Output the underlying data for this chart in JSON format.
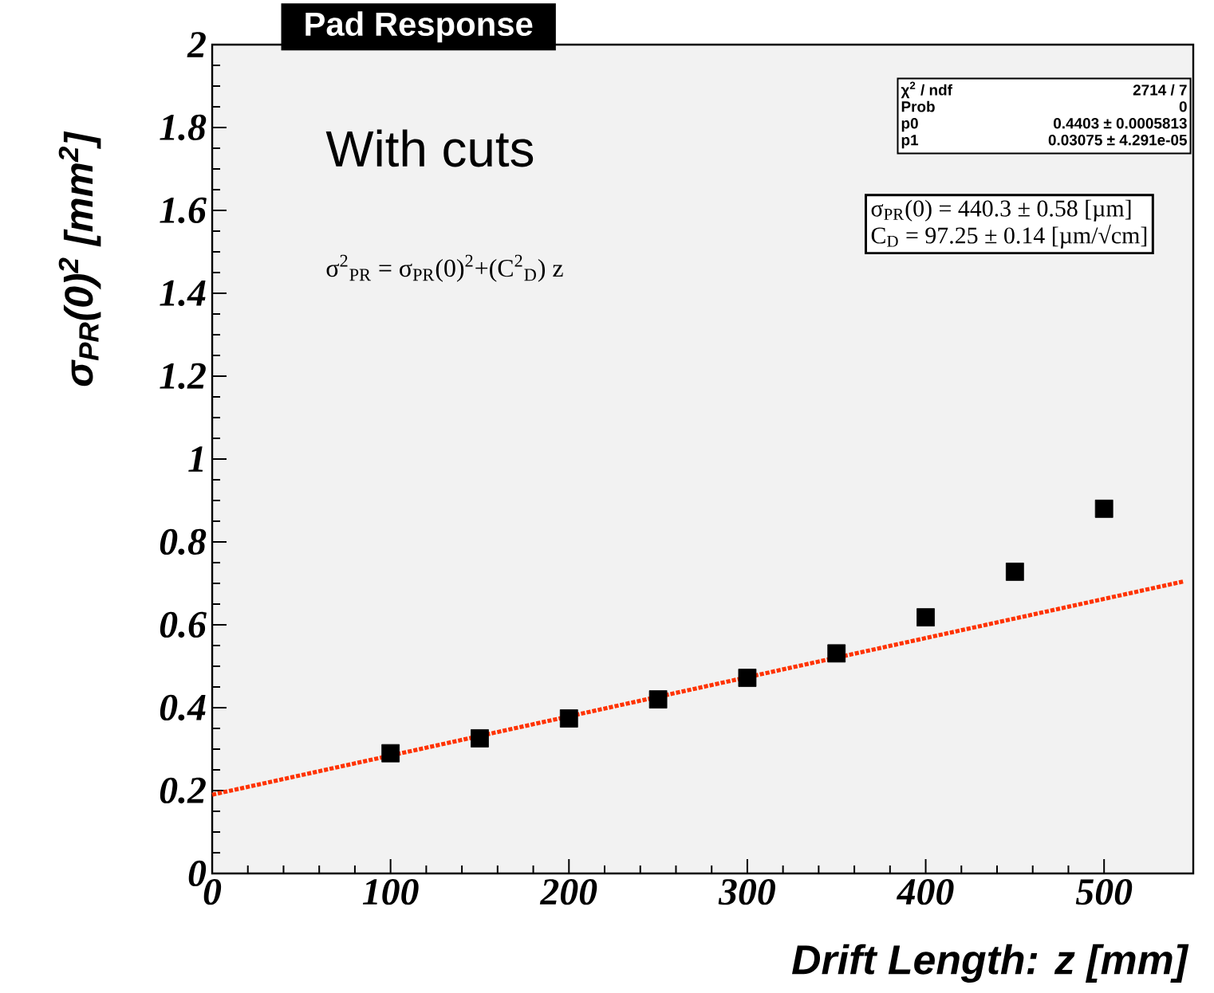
{
  "chart_data": {
    "type": "scatter",
    "title": "Pad Response",
    "xlabel": "Drift Length: z [mm]",
    "ylabel": "σ$_{PR}$(0)$^{2}$ [mm$^{2}$]",
    "xlim": [
      0,
      550
    ],
    "ylim": [
      0,
      2
    ],
    "xticks": [
      0,
      100,
      200,
      300,
      400,
      500
    ],
    "yticks": [
      0,
      0.2,
      0.4,
      0.6,
      0.8,
      1,
      1.2,
      1.4,
      1.6,
      1.8,
      2
    ],
    "series": [
      {
        "marker": "square",
        "color": "#000000",
        "x": [
          100,
          150,
          200,
          250,
          300,
          350,
          400,
          450,
          500
        ],
        "values": [
          0.29,
          0.326,
          0.374,
          0.42,
          0.472,
          0.531,
          0.618,
          0.728,
          0.88
        ]
      },
      {
        "type": "line",
        "line_style": "dotted",
        "color": "#ff3300",
        "x": [
          0,
          545
        ],
        "values": [
          0.19,
          0.705
        ]
      }
    ],
    "annotations": [
      "With cuts",
      "σ$^{2}$$_{PR}$ = σ$_{PR}$(0)$^{2}$+(C$^{2}$$_{D}$) z",
      "χ$^{2}$ / ndf",
      "2714 / 7",
      "Prob",
      "0",
      "p0",
      "0.4403 ± 0.0005813",
      "p1",
      "0.03075 ± 4.291e-05",
      "σ$_{PR}$(0) =  440.3 ± 0.58 [µm]",
      "C$_{D}$ =  97.25 ± 0.14 [µm/√cm]"
    ]
  }
}
